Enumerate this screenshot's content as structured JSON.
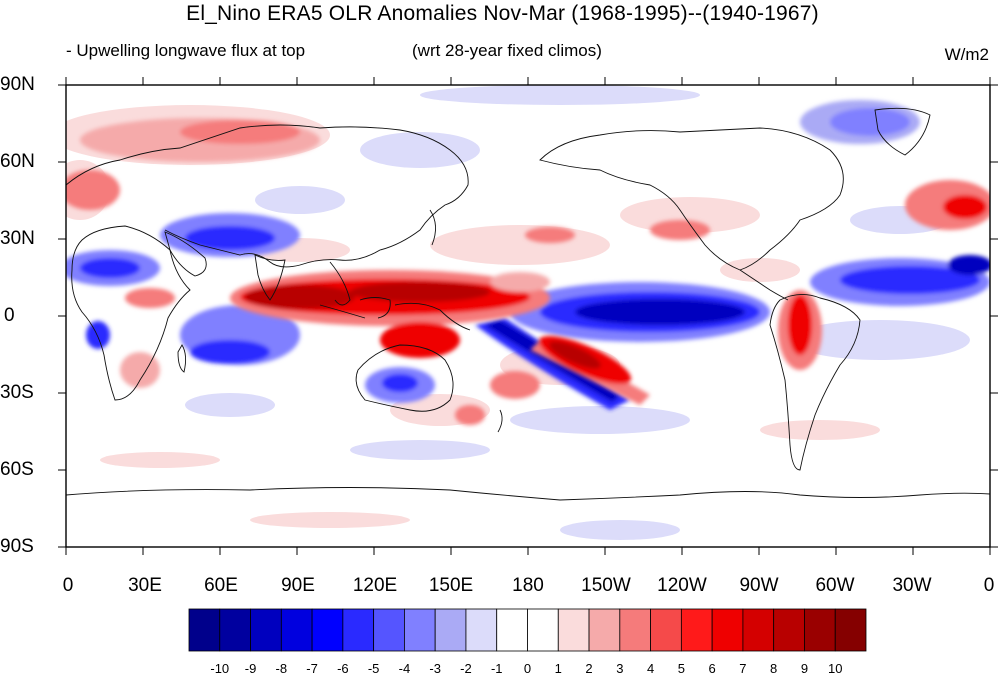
{
  "map": {
    "title": "El_Nino ERA5 OLR Anomalies Nov-Mar (1968-1995)--(1940-1967)",
    "subtitle_left": "- Upwelling longwave flux at top",
    "subtitle_center": "(wrt 28-year fixed climos)",
    "units": "W/m2",
    "lat_labels": [
      "90N",
      "60N",
      "30N",
      "0",
      "30S",
      "60S",
      "90S"
    ],
    "lon_labels": [
      "0",
      "30E",
      "60E",
      "90E",
      "120E",
      "150E",
      "180",
      "150W",
      "120W",
      "90W",
      "60W",
      "30W",
      "0"
    ]
  },
  "colorbar": {
    "labels": [
      "-10",
      "-9",
      "-8",
      "-7",
      "-6",
      "-5",
      "-4",
      "-3",
      "-2",
      "-1",
      "0",
      "1",
      "2",
      "3",
      "4",
      "5",
      "6",
      "7",
      "8",
      "9",
      "10"
    ],
    "colors": [
      "#00008b",
      "#00009f",
      "#0000bf",
      "#0000df",
      "#0000ff",
      "#2a2aff",
      "#5555ff",
      "#8080ff",
      "#aaaaf5",
      "#dcdcfa",
      "#ffffff",
      "#ffffff",
      "#fadcdc",
      "#f5aaaa",
      "#f57b7b",
      "#f54a4a",
      "#ff1a1a",
      "#ef0000",
      "#d40000",
      "#b80000",
      "#9a0000",
      "#850000"
    ]
  },
  "anomaly_colors": {
    "blue_light": "#dcdcfa",
    "blue_mid": "#8080ff",
    "blue_strong": "#2a2aff",
    "blue_dark": "#0000bf",
    "red_light": "#fadcdc",
    "red_mid": "#f57b7b",
    "red_strong": "#ef0000",
    "red_dark": "#b80000"
  }
}
